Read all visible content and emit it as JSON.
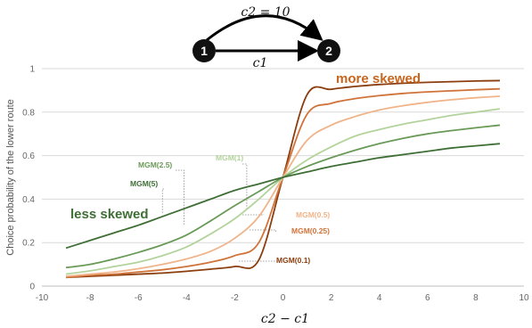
{
  "diagram": {
    "node1": "1",
    "node2": "2",
    "top_edge_label": "c2 = 10",
    "bottom_edge_label": "c1"
  },
  "chart_data": {
    "type": "line",
    "xlabel": "c2 − c1",
    "ylabel": "Choice probability of the lower route",
    "xlim": [
      -10,
      10
    ],
    "ylim": [
      0,
      1
    ],
    "xticks": [
      "-10",
      "-8",
      "-6",
      "-4",
      "-2",
      "0",
      "2",
      "4",
      "6",
      "8",
      "10"
    ],
    "yticks": [
      "0",
      "0.2",
      "0.4",
      "0.6",
      "0.8",
      "1"
    ],
    "grid": true,
    "x": [
      -9,
      -8,
      -7,
      -6,
      -5,
      -4,
      -3,
      -2,
      -1,
      0,
      1,
      2,
      3,
      4,
      5,
      6,
      7,
      8,
      9
    ],
    "series": [
      {
        "name": "MGM(0.1)",
        "color": "#8b3e0e",
        "values": [
          0.04,
          0.045,
          0.05,
          0.055,
          0.06,
          0.068,
          0.078,
          0.09,
          0.12,
          0.5,
          0.88,
          0.905,
          0.918,
          0.927,
          0.933,
          0.937,
          0.94,
          0.943,
          0.945
        ]
      },
      {
        "name": "MGM(0.25)",
        "color": "#d0733a",
        "values": [
          0.04,
          0.05,
          0.055,
          0.065,
          0.075,
          0.09,
          0.11,
          0.14,
          0.2,
          0.5,
          0.79,
          0.84,
          0.862,
          0.876,
          0.886,
          0.893,
          0.898,
          0.903,
          0.907
        ]
      },
      {
        "name": "MGM(0.5)",
        "color": "#f0b48a",
        "values": [
          0.045,
          0.055,
          0.065,
          0.08,
          0.1,
          0.125,
          0.16,
          0.22,
          0.32,
          0.5,
          0.67,
          0.74,
          0.78,
          0.81,
          0.83,
          0.845,
          0.857,
          0.866,
          0.873
        ]
      },
      {
        "name": "MGM(1)",
        "color": "#b3d39c",
        "values": [
          0.055,
          0.07,
          0.09,
          0.11,
          0.14,
          0.18,
          0.24,
          0.31,
          0.4,
          0.5,
          0.58,
          0.64,
          0.69,
          0.72,
          0.745,
          0.765,
          0.785,
          0.8,
          0.815
        ]
      },
      {
        "name": "MGM(2.5)",
        "color": "#6a9a58",
        "values": [
          0.085,
          0.1,
          0.125,
          0.155,
          0.19,
          0.235,
          0.3,
          0.37,
          0.435,
          0.5,
          0.55,
          0.59,
          0.625,
          0.655,
          0.68,
          0.7,
          0.715,
          0.728,
          0.74
        ]
      },
      {
        "name": "MGM(5)",
        "color": "#3e6e35",
        "values": [
          0.175,
          0.21,
          0.245,
          0.28,
          0.32,
          0.36,
          0.4,
          0.44,
          0.47,
          0.5,
          0.525,
          0.55,
          0.57,
          0.59,
          0.605,
          0.62,
          0.635,
          0.645,
          0.655
        ]
      }
    ],
    "annotations": {
      "more_skewed": "more skewed",
      "less_skewed": "less skewed"
    }
  }
}
